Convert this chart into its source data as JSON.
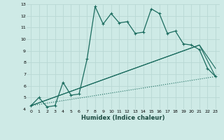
{
  "xlabel": "Humidex (Indice chaleur)",
  "bg_color": "#ceeae6",
  "grid_color": "#b8d8d4",
  "line_color": "#1a6b5e",
  "xlim": [
    -0.5,
    23.5
  ],
  "ylim": [
    4,
    13
  ],
  "xticks": [
    0,
    1,
    2,
    3,
    4,
    5,
    6,
    7,
    8,
    9,
    10,
    11,
    12,
    13,
    14,
    15,
    16,
    17,
    18,
    19,
    20,
    21,
    22,
    23
  ],
  "yticks": [
    4,
    5,
    6,
    7,
    8,
    9,
    10,
    11,
    12,
    13
  ],
  "series1_x": [
    0,
    1,
    2,
    3,
    4,
    5,
    6,
    7,
    8,
    9,
    10,
    11,
    12,
    13,
    14,
    15,
    16,
    17,
    18,
    19,
    20,
    21,
    22,
    23
  ],
  "series1_y": [
    4.3,
    5.0,
    4.2,
    4.3,
    6.3,
    5.2,
    5.3,
    8.3,
    12.8,
    11.3,
    12.2,
    11.4,
    11.5,
    10.5,
    10.6,
    12.6,
    12.2,
    10.5,
    10.7,
    9.6,
    9.5,
    9.1,
    7.5,
    6.8
  ],
  "series2_x": [
    0,
    21,
    23
  ],
  "series2_y": [
    4.3,
    9.5,
    6.8
  ],
  "series3_x": [
    0,
    21,
    23
  ],
  "series3_y": [
    4.3,
    9.5,
    7.5
  ],
  "series4_x": [
    0,
    23
  ],
  "series4_y": [
    4.3,
    6.8
  ]
}
